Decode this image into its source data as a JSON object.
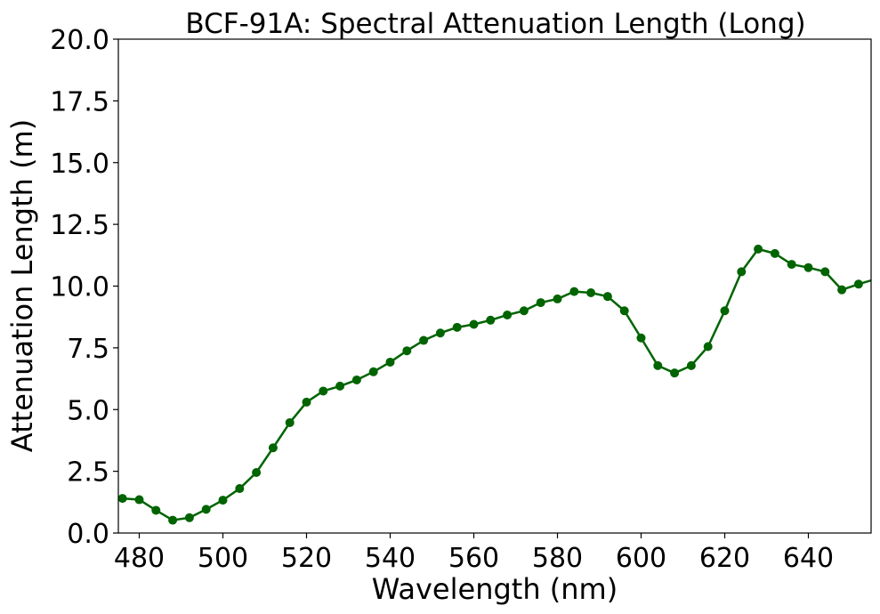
{
  "chart_data": {
    "type": "line",
    "title": "BCF-91A: Spectral Attenuation Length (Long)",
    "xlabel": "Wavelength (nm)",
    "ylabel": "Attenuation Length (m)",
    "xlim": [
      475,
      655
    ],
    "ylim": [
      0,
      20
    ],
    "xticks": [
      480,
      500,
      520,
      540,
      560,
      580,
      600,
      620,
      640
    ],
    "yticks": [
      0.0,
      2.5,
      5.0,
      7.5,
      10.0,
      12.5,
      15.0,
      17.5,
      20.0
    ],
    "xtick_labels": [
      "480",
      "500",
      "520",
      "540",
      "560",
      "580",
      "600",
      "620",
      "640"
    ],
    "ytick_labels": [
      "0.0",
      "2.5",
      "5.0",
      "7.5",
      "10.0",
      "12.5",
      "15.0",
      "17.5",
      "20.0"
    ],
    "grid": false,
    "legend": false,
    "series": [
      {
        "color": "#006400",
        "marker": "circle",
        "x": [
          472,
          476,
          480,
          484,
          488,
          492,
          496,
          500,
          504,
          508,
          512,
          516,
          520,
          524,
          528,
          532,
          536,
          540,
          544,
          548,
          552,
          556,
          560,
          564,
          568,
          572,
          576,
          580,
          584,
          588,
          592,
          596,
          600,
          604,
          608,
          612,
          616,
          620,
          624,
          628,
          632,
          636,
          640,
          644,
          648,
          652,
          656
        ],
        "y": [
          1.7,
          1.4,
          1.35,
          0.92,
          0.52,
          0.62,
          0.96,
          1.33,
          1.8,
          2.45,
          3.45,
          4.47,
          5.3,
          5.75,
          5.95,
          6.2,
          6.53,
          6.92,
          7.38,
          7.8,
          8.1,
          8.33,
          8.45,
          8.62,
          8.83,
          9.0,
          9.33,
          9.48,
          9.78,
          9.73,
          9.58,
          9.0,
          7.9,
          6.78,
          6.48,
          6.78,
          7.55,
          9.0,
          10.58,
          11.5,
          11.32,
          10.88,
          10.75,
          10.58,
          9.85,
          10.08,
          10.28
        ]
      }
    ]
  }
}
